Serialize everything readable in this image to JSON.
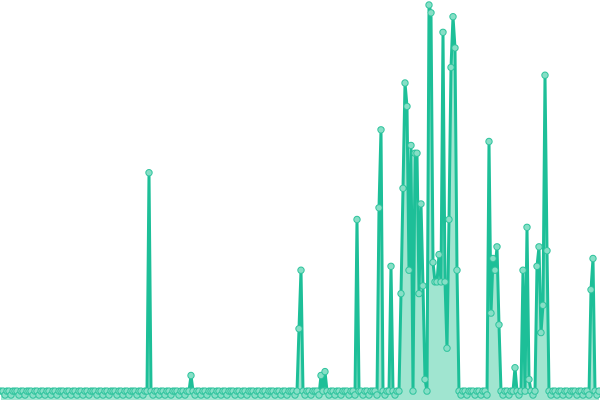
{
  "chart_data": {
    "type": "line",
    "title": "",
    "xlabel": "",
    "ylabel": "",
    "grid": false,
    "axes_visible": false,
    "markers": true,
    "area_fill": true,
    "ylim": [
      0,
      100
    ],
    "colors": {
      "line": "#1dbf98",
      "marker_fill": "#86dfc6",
      "marker_stroke": "#2fc39d",
      "area": "#8fe0c8"
    },
    "series": [
      {
        "values": [
          1,
          1,
          0,
          1,
          1,
          0,
          1,
          1,
          1,
          0,
          1,
          1,
          0,
          1,
          1,
          1,
          0,
          1,
          1,
          0,
          1,
          1,
          0,
          1,
          1,
          0,
          1,
          1,
          0,
          1,
          1,
          1,
          0,
          1,
          1,
          0,
          1,
          1,
          0,
          1,
          1,
          0,
          1,
          1,
          0,
          1,
          1,
          1,
          0,
          1,
          1,
          0,
          1,
          1,
          0,
          1,
          1,
          1,
          0,
          1,
          1,
          0,
          1,
          1,
          0,
          1,
          1,
          1,
          0,
          1,
          1,
          0,
          1,
          1,
          57,
          1,
          0,
          1,
          1,
          0,
          1,
          1,
          0,
          1,
          1,
          0,
          1,
          1,
          1,
          0,
          1,
          1,
          0,
          1,
          1,
          5,
          1,
          0,
          1,
          1,
          0,
          1,
          1,
          0,
          1,
          1,
          1,
          0,
          1,
          1,
          0,
          1,
          1,
          0,
          1,
          1,
          1,
          0,
          1,
          1,
          0,
          1,
          1,
          0,
          1,
          1,
          1,
          0,
          1,
          1,
          0,
          1,
          1,
          0,
          1,
          1,
          1,
          0,
          1,
          1,
          0,
          1,
          1,
          0,
          1,
          1,
          1,
          0,
          1,
          17,
          32,
          1,
          0,
          1,
          1,
          0,
          1,
          1,
          1,
          0,
          5,
          1,
          6,
          1,
          0,
          1,
          1,
          0,
          1,
          1,
          0,
          1,
          1,
          1,
          0,
          1,
          1,
          0,
          45,
          1,
          1,
          0,
          1,
          1,
          0,
          1,
          1,
          1,
          0,
          48,
          68,
          1,
          0,
          1,
          1,
          33,
          1,
          0,
          1,
          1,
          26,
          53,
          80,
          74,
          32,
          64,
          1,
          62,
          62,
          26,
          49,
          28,
          4,
          1,
          100,
          98,
          34,
          29,
          29,
          36,
          29,
          93,
          29,
          12,
          45,
          84,
          97,
          89,
          32,
          1,
          0,
          1,
          1,
          0,
          1,
          1,
          1,
          0,
          1,
          1,
          0,
          1,
          1,
          0,
          65,
          21,
          35,
          32,
          38,
          18,
          1,
          0,
          1,
          1,
          0,
          1,
          1,
          7,
          1,
          0,
          1,
          32,
          1,
          43,
          4,
          1,
          0,
          1,
          33,
          38,
          16,
          23,
          82,
          37,
          1,
          0,
          1,
          1,
          0,
          1,
          1,
          0,
          1,
          1,
          0,
          1,
          1,
          1,
          0,
          1,
          1,
          0,
          1,
          1,
          0,
          27,
          35,
          1,
          0,
          1
        ]
      }
    ]
  }
}
